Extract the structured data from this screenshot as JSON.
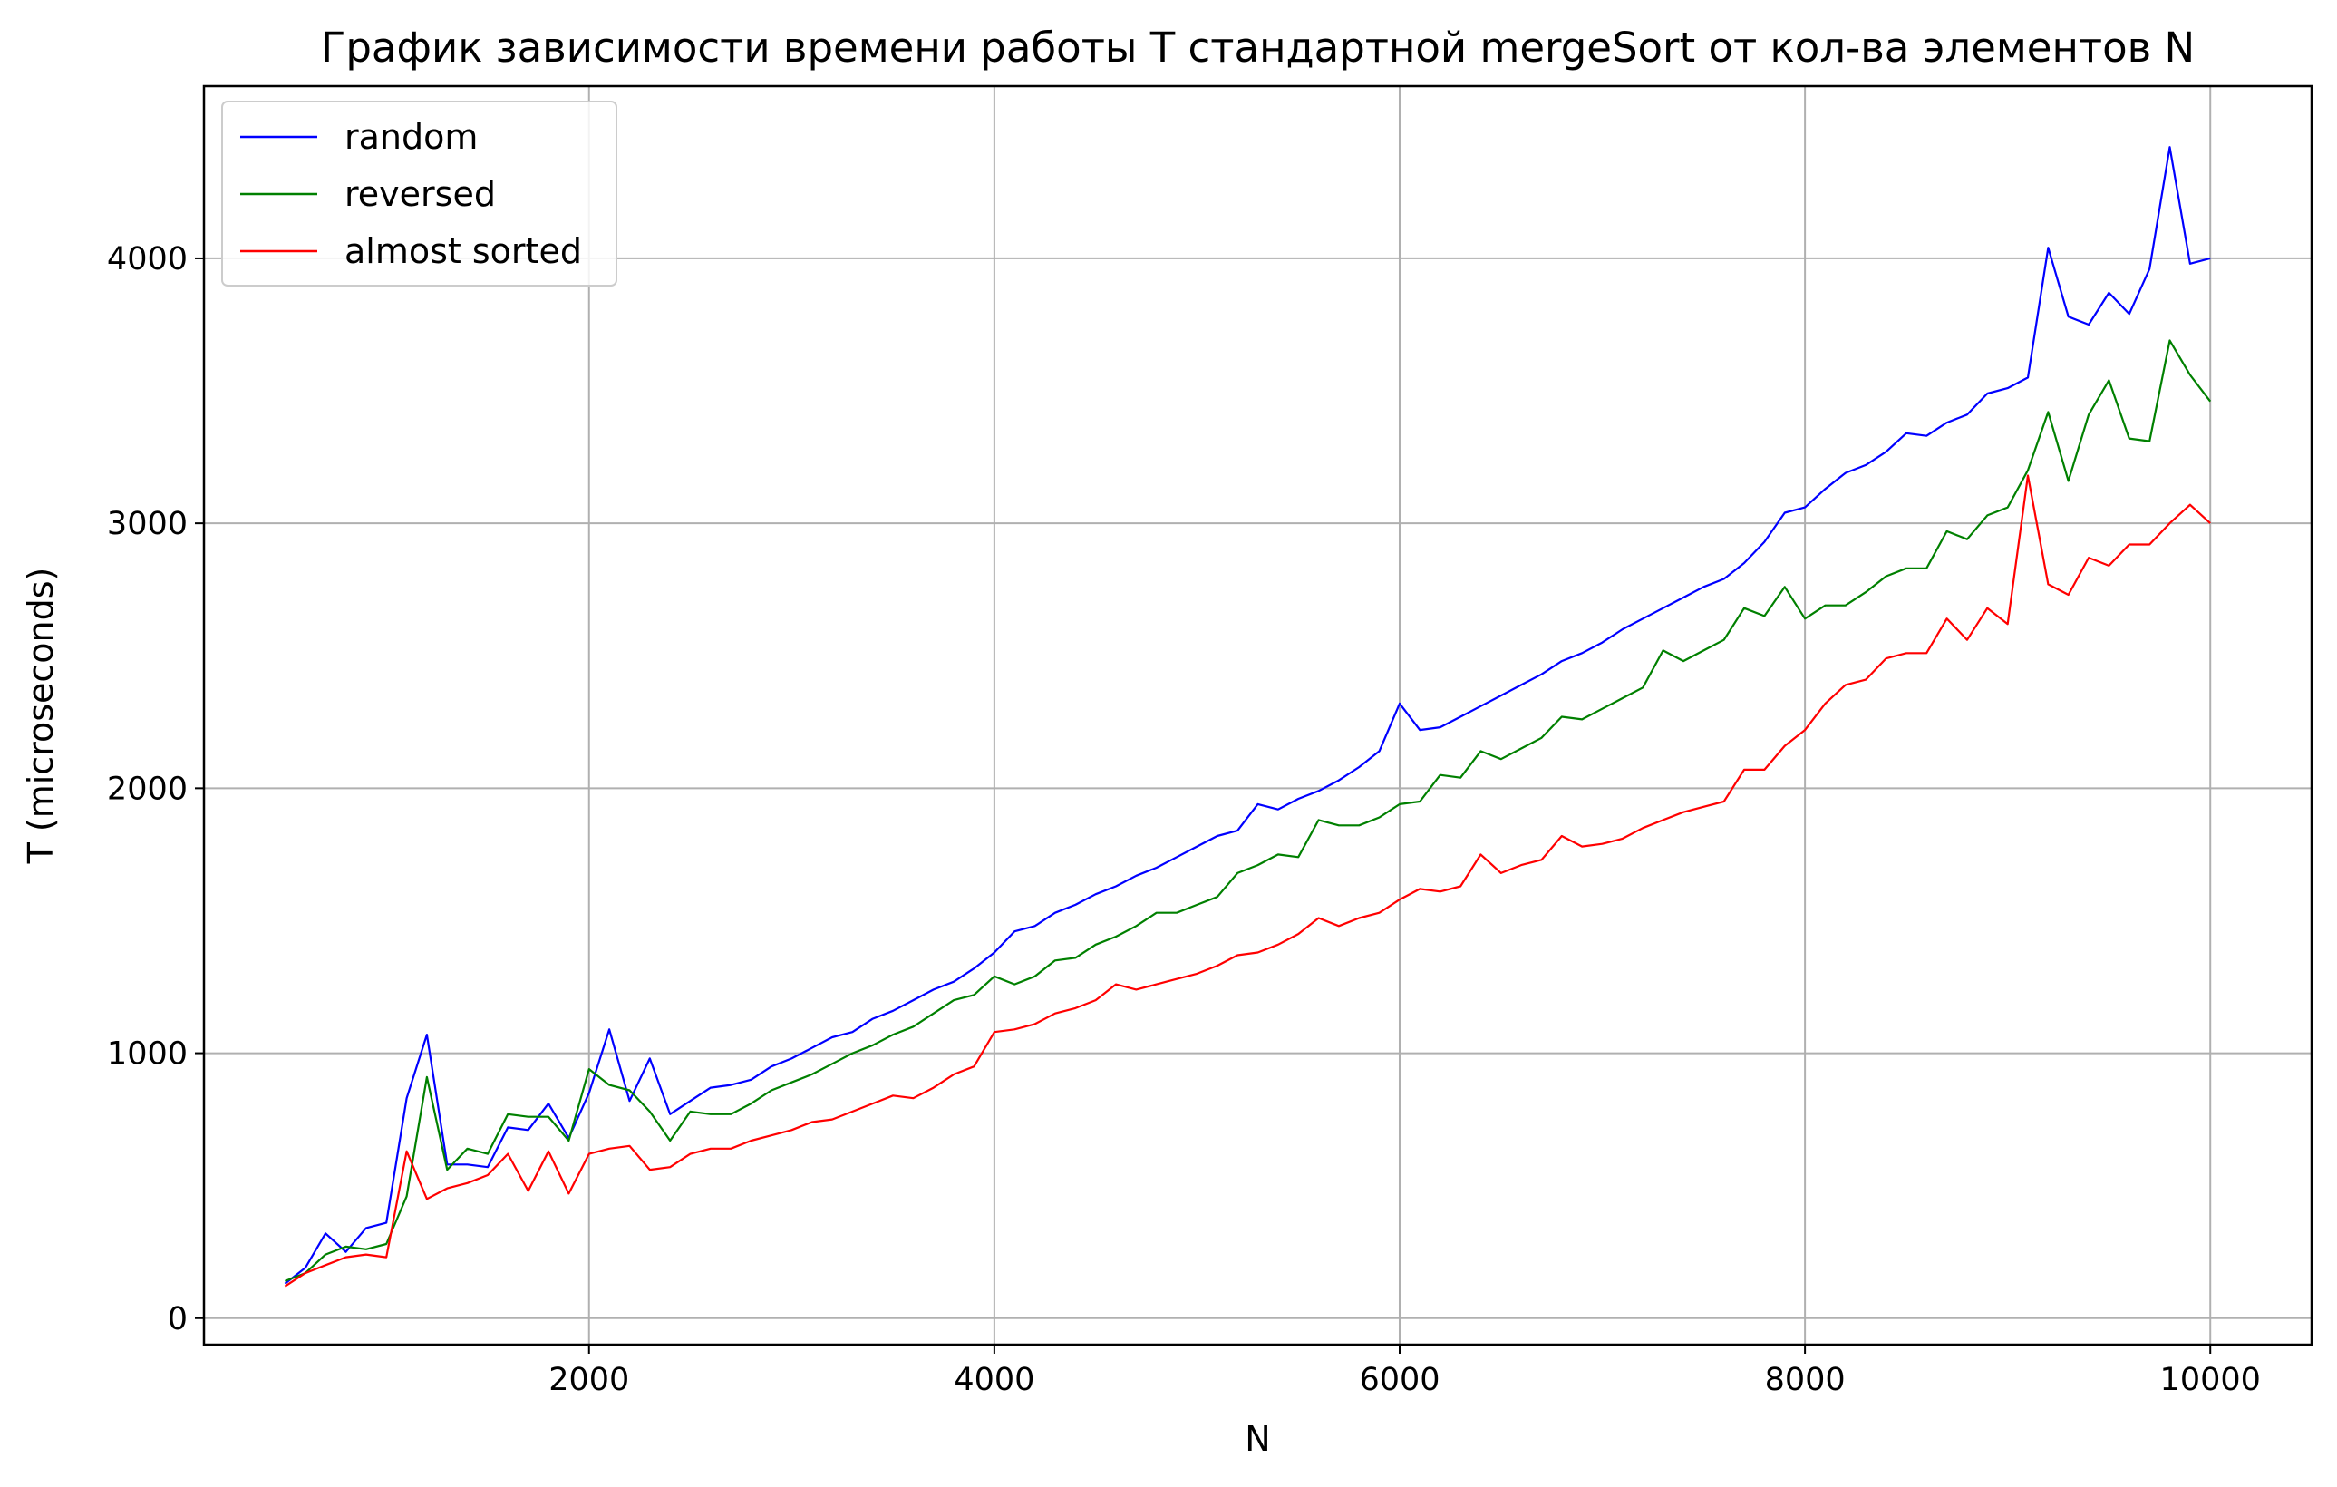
{
  "chart_data": {
    "type": "line",
    "title": "График зависимости времени работы T стандартной mergeSort от кол-ва элементов N",
    "xlabel": "N",
    "ylabel": "T (microseconds)",
    "xlim": [
      100,
      10500
    ],
    "ylim": [
      -100,
      4650
    ],
    "xticks": [
      2000,
      4000,
      6000,
      8000,
      10000
    ],
    "yticks": [
      0,
      1000,
      2000,
      3000,
      4000
    ],
    "grid": true,
    "legend_position": "upper-left",
    "x": [
      500,
      600,
      700,
      800,
      900,
      1000,
      1100,
      1200,
      1300,
      1400,
      1500,
      1600,
      1700,
      1800,
      1900,
      2000,
      2100,
      2200,
      2300,
      2400,
      2500,
      2600,
      2700,
      2800,
      2900,
      3000,
      3100,
      3200,
      3300,
      3400,
      3500,
      3600,
      3700,
      3800,
      3900,
      4000,
      4100,
      4200,
      4300,
      4400,
      4500,
      4600,
      4700,
      4800,
      4900,
      5000,
      5100,
      5200,
      5300,
      5400,
      5500,
      5600,
      5700,
      5800,
      5900,
      6000,
      6100,
      6200,
      6300,
      6400,
      6500,
      6600,
      6700,
      6800,
      6900,
      7000,
      7100,
      7200,
      7300,
      7400,
      7500,
      7600,
      7700,
      7800,
      7900,
      8000,
      8100,
      8200,
      8300,
      8400,
      8500,
      8600,
      8700,
      8800,
      8900,
      9000,
      9100,
      9200,
      9300,
      9400,
      9500,
      9600,
      9700,
      9800,
      9900,
      10000
    ],
    "series": [
      {
        "name": "random",
        "color": "#0000ff",
        "values": [
          130,
          190,
          320,
          250,
          340,
          360,
          830,
          1070,
          580,
          580,
          570,
          720,
          710,
          810,
          680,
          850,
          1090,
          820,
          980,
          770,
          820,
          870,
          880,
          900,
          950,
          980,
          1020,
          1060,
          1080,
          1130,
          1160,
          1200,
          1240,
          1270,
          1320,
          1380,
          1460,
          1480,
          1530,
          1560,
          1600,
          1630,
          1670,
          1700,
          1740,
          1780,
          1820,
          1840,
          1940,
          1920,
          1960,
          1990,
          2030,
          2080,
          2140,
          2320,
          2220,
          2230,
          2270,
          2310,
          2350,
          2390,
          2430,
          2480,
          2510,
          2550,
          2600,
          2640,
          2680,
          2720,
          2760,
          2790,
          2850,
          2930,
          3040,
          3060,
          3130,
          3190,
          3220,
          3270,
          3340,
          3330,
          3380,
          3410,
          3490,
          3510,
          3550,
          4040,
          3780,
          3750,
          3870,
          3790,
          3960,
          4420,
          3980,
          4000
        ]
      },
      {
        "name": "reversed",
        "color": "#008000",
        "values": [
          140,
          170,
          240,
          270,
          260,
          280,
          460,
          910,
          560,
          640,
          620,
          770,
          760,
          760,
          670,
          940,
          880,
          860,
          780,
          670,
          780,
          770,
          770,
          810,
          860,
          890,
          920,
          960,
          1000,
          1030,
          1070,
          1100,
          1150,
          1200,
          1220,
          1290,
          1260,
          1290,
          1350,
          1360,
          1410,
          1440,
          1480,
          1530,
          1530,
          1560,
          1590,
          1680,
          1710,
          1750,
          1740,
          1880,
          1860,
          1860,
          1890,
          1940,
          1950,
          2050,
          2040,
          2140,
          2110,
          2150,
          2190,
          2270,
          2260,
          2300,
          2340,
          2380,
          2520,
          2480,
          2520,
          2560,
          2680,
          2650,
          2760,
          2640,
          2690,
          2690,
          2740,
          2800,
          2830,
          2830,
          2970,
          2940,
          3030,
          3060,
          3200,
          3420,
          3160,
          3410,
          3540,
          3320,
          3310,
          3690,
          3560,
          3460
        ]
      },
      {
        "name": "almost sorted",
        "color": "#ff0000",
        "values": [
          120,
          170,
          200,
          230,
          240,
          230,
          630,
          450,
          490,
          510,
          540,
          620,
          480,
          630,
          470,
          620,
          640,
          650,
          560,
          570,
          620,
          640,
          640,
          670,
          690,
          710,
          740,
          750,
          780,
          810,
          840,
          830,
          870,
          920,
          950,
          1080,
          1090,
          1110,
          1150,
          1170,
          1200,
          1260,
          1240,
          1260,
          1280,
          1300,
          1330,
          1370,
          1380,
          1410,
          1450,
          1510,
          1480,
          1510,
          1530,
          1580,
          1620,
          1610,
          1630,
          1750,
          1680,
          1710,
          1730,
          1820,
          1780,
          1790,
          1810,
          1850,
          1880,
          1910,
          1930,
          1950,
          2070,
          2070,
          2160,
          2220,
          2320,
          2390,
          2410,
          2490,
          2510,
          2510,
          2640,
          2560,
          2680,
          2620,
          3180,
          2770,
          2730,
          2870,
          2840,
          2920,
          2920,
          3000,
          3070,
          3000
        ]
      }
    ]
  }
}
